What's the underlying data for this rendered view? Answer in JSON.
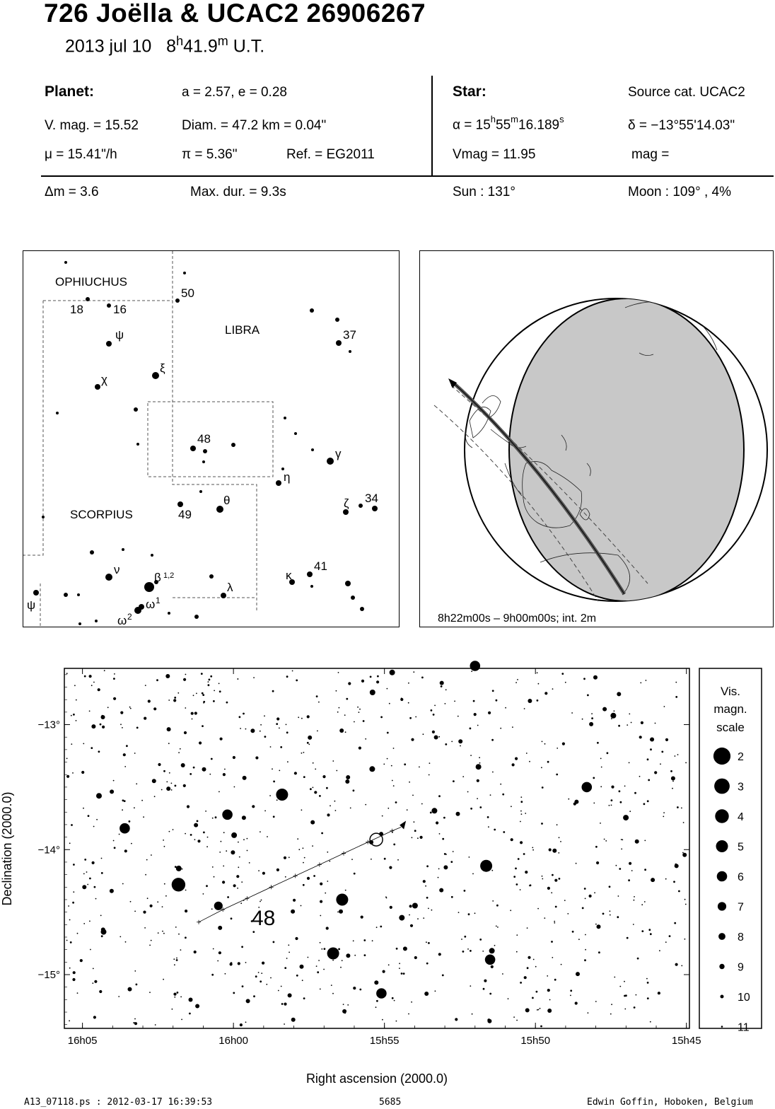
{
  "header": {
    "title": "726 Joëlla  &  UCAC2 26906267",
    "date": "2013 jul 10",
    "time_h": "8",
    "time_h_sup": "h",
    "time_m": "41.9",
    "time_m_sup": "m",
    "time_suffix": "U.T."
  },
  "planet": {
    "label": "Planet:",
    "orbit": "a = 2.57, e = 0.28",
    "vmag": "V. mag. = 15.52",
    "diam": "Diam. = 47.2 km = 0.04\"",
    "mu": "μ =  15.41\"/h",
    "pi": "π =  5.36\"",
    "ref": "Ref. = EG2011"
  },
  "star": {
    "label": "Star:",
    "source": "Source cat.  UCAC2",
    "alpha_prefix": "α = 15",
    "alpha_h": "h",
    "alpha_mid": "55",
    "alpha_m": "m",
    "alpha_sec": "16.189",
    "alpha_s": "s",
    "delta": "δ = −13°55'14.03\"",
    "vmag": "Vmag = 11.95",
    "mag": "mag ="
  },
  "summary": {
    "dm": "Δm = 3.6",
    "maxdur": "Max. dur. = 9.3s",
    "sun": "Sun : 131°",
    "moon": "Moon : 109° ,  4%"
  },
  "constellation_chart": {
    "labels": [
      "OPHIUCHUS",
      "LIBRA",
      "SCORPIUS"
    ],
    "star_labels": [
      "50",
      "18",
      "16",
      "ψ",
      "ξ",
      "37",
      "χ",
      "48",
      "γ",
      "η",
      "θ",
      "ζ",
      "34",
      "49",
      "41",
      "ν",
      "β",
      "κ",
      "λ",
      "ω",
      "ψ"
    ],
    "sup_labels": [
      "1,2",
      "1",
      "2"
    ]
  },
  "globe_panel": {
    "caption": "8h22m00s –  9h00m00s; int.  2m"
  },
  "chart_data": {
    "type": "scatter",
    "xlabel": "Right ascension (2000.0)",
    "ylabel": "Declination (2000.0)",
    "x_ticks": [
      "16h05",
      "16h00",
      "15h55",
      "15h50",
      "15h45"
    ],
    "y_ticks": [
      "−13°",
      "−14°",
      "−15°"
    ],
    "x_tick_minutes": [
      245,
      240,
      235,
      230,
      225
    ],
    "y_tick_values": [
      -13,
      -14,
      -15
    ],
    "xlim_minutes": [
      245.6,
      224.9
    ],
    "ylim": [
      -12.55,
      -15.43
    ],
    "field_label": "48",
    "bright_stars": [
      {
        "ra": 241.82,
        "dec": -14.28,
        "mag": 4
      },
      {
        "ra": 238.39,
        "dec": -13.56,
        "mag": 5
      },
      {
        "ra": 236.4,
        "dec": -14.4,
        "mag": 5
      },
      {
        "ra": 236.7,
        "dec": -14.83,
        "mag": 5
      },
      {
        "ra": 231.63,
        "dec": -14.13,
        "mag": 5
      },
      {
        "ra": 232.0,
        "dec": -12.53,
        "mag": 6
      },
      {
        "ra": 228.3,
        "dec": -13.5,
        "mag": 6
      },
      {
        "ra": 231.5,
        "dec": -14.88,
        "mag": 6
      },
      {
        "ra": 240.5,
        "dec": -14.45,
        "mag": 7
      },
      {
        "ra": 243.6,
        "dec": -13.83,
        "mag": 6
      },
      {
        "ra": 240.2,
        "dec": -13.72,
        "mag": 6
      },
      {
        "ra": 235.1,
        "dec": -15.15,
        "mag": 6
      }
    ],
    "track": {
      "ra": [
        241.15,
        240.35,
        239.55,
        238.75,
        237.95,
        237.15,
        236.35,
        235.55,
        234.75,
        234.45
      ],
      "dec": [
        -14.58,
        -14.48,
        -14.39,
        -14.3,
        -14.21,
        -14.12,
        -14.03,
        -13.94,
        -13.85,
        -13.82
      ]
    },
    "target": {
      "ra": 235.27,
      "dec": -13.92
    },
    "legend_title": [
      "Vis.",
      "magn.",
      "scale"
    ],
    "legend_mags": [
      "2",
      "3",
      "4",
      "5",
      "6",
      "7",
      "8",
      "9",
      "10",
      "11"
    ]
  },
  "footer": {
    "left": "A13_07118.ps : 2012-03-17 16:39:53",
    "center": "5685",
    "right": "Edwin Goffin, Hoboken, Belgium"
  }
}
